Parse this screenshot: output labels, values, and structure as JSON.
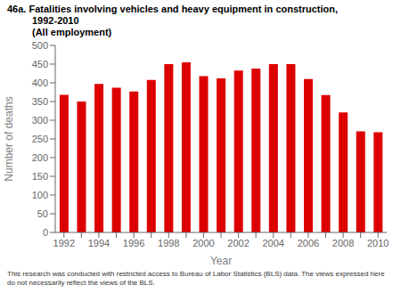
{
  "chart_data": {
    "type": "bar",
    "title": [
      "46a. Fatalities involving vehicles and heavy equipment in construction,",
      "1992-2010",
      "(All employment)"
    ],
    "xlabel": "Year",
    "ylabel": "Number of deaths",
    "categories": [
      "1992",
      null,
      "1994",
      null,
      "1996",
      null,
      "1998",
      null,
      "2000",
      null,
      "2002",
      null,
      "2004",
      null,
      "2006",
      null,
      "2008",
      null,
      "2010"
    ],
    "values": [
      368,
      350,
      397,
      387,
      377,
      408,
      450,
      455,
      418,
      412,
      433,
      438,
      450,
      450,
      410,
      367,
      321,
      270,
      268
    ],
    "color": "#dd0000",
    "ylim": [
      0,
      500
    ],
    "yticks": [
      0,
      50,
      100,
      150,
      200,
      250,
      300,
      350,
      400,
      450,
      500
    ],
    "grid": false,
    "annotations": [
      "This research was conducted with restricted access to Bureau of Labor Statistics (BLS) data.  The views expressed here do not necessarily reflect the views of the BLS."
    ]
  }
}
